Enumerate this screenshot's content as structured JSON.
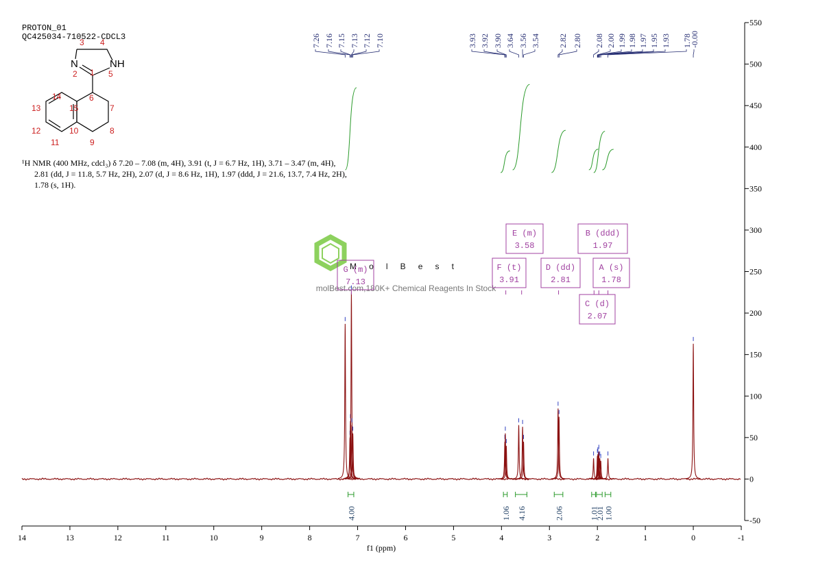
{
  "header": {
    "title": "PROTON_01",
    "sample": "QC425034-710522-CDCL3"
  },
  "structure": {
    "labels": [
      "3",
      "4",
      "N",
      "2",
      "1",
      "NH",
      "5",
      "6",
      "14",
      "15",
      "7",
      "13",
      "12",
      "10",
      "8",
      "11",
      "9"
    ]
  },
  "description": [
    "¹H NMR (400 MHz, cdcl₃) δ 7.20 – 7.08 (m, 4H), 3.91 (t, J = 6.7 Hz, 1H), 3.71 – 3.47 (m, 4H),",
    "2.81 (dd, J = 11.8, 5.7 Hz, 2H), 2.07 (d, J = 8.6 Hz, 1H), 1.97 (ddd, J = 21.6, 13.7, 7.4 Hz, 2H),",
    "1.78 (s, 1H)."
  ],
  "watermark": {
    "brand": "MolBest",
    "tagline": "molBest.com,180K+ Chemical Reagents In Stock"
  },
  "chart_data": {
    "type": "nmr",
    "x_label": "f1 (ppm)",
    "xlim": [
      14,
      -1
    ],
    "xticks": [
      14,
      13,
      12,
      11,
      10,
      9,
      8,
      7,
      6,
      5,
      4,
      3,
      2,
      1,
      0,
      -1
    ],
    "ylim": [
      -50,
      550
    ],
    "yticks": [
      -50,
      0,
      50,
      100,
      150,
      200,
      250,
      300,
      350,
      400,
      450,
      500,
      550
    ],
    "color": "#8b1010",
    "peaks": [
      {
        "ppm": 7.26,
        "label": "7.26",
        "height": 187
      },
      {
        "ppm": 7.16,
        "label": "7.16",
        "height": 50
      },
      {
        "ppm": 7.15,
        "label": "7.15",
        "height": 70
      },
      {
        "ppm": 7.13,
        "label": "7.13",
        "height": 225
      },
      {
        "ppm": 7.12,
        "label": "7.12",
        "height": 65
      },
      {
        "ppm": 7.1,
        "label": "7.10",
        "height": 55
      },
      {
        "ppm": 3.93,
        "label": "3.93",
        "height": 45
      },
      {
        "ppm": 3.92,
        "label": "3.92",
        "height": 55
      },
      {
        "ppm": 3.9,
        "label": "3.90",
        "height": 40
      },
      {
        "ppm": 3.64,
        "label": "3.64",
        "height": 65
      },
      {
        "ppm": 3.56,
        "label": "3.56",
        "height": 63
      },
      {
        "ppm": 3.54,
        "label": "3.54",
        "height": 45
      },
      {
        "ppm": 2.82,
        "label": "2.82",
        "height": 85
      },
      {
        "ppm": 2.8,
        "label": "2.80",
        "height": 75
      },
      {
        "ppm": 2.08,
        "label": "2.08",
        "height": 25
      },
      {
        "ppm": 2.0,
        "label": "2.00",
        "height": 28
      },
      {
        "ppm": 1.99,
        "label": "1.99",
        "height": 30
      },
      {
        "ppm": 1.98,
        "label": "1.98",
        "height": 25
      },
      {
        "ppm": 1.97,
        "label": "1.97",
        "height": 33
      },
      {
        "ppm": 1.95,
        "label": "1.95",
        "height": 25
      },
      {
        "ppm": 1.93,
        "label": "1.93",
        "height": 22
      },
      {
        "ppm": 1.78,
        "label": "1.78",
        "height": 25
      },
      {
        "ppm": 0,
        "label": "-0.00",
        "height": 163
      }
    ],
    "integrals": [
      {
        "range": [
          7.2,
          7.08
        ],
        "value": 4,
        "label": "4.00"
      },
      {
        "range": [
          3.96,
          3.88
        ],
        "value": 1.06,
        "label": "1.06"
      },
      {
        "range": [
          3.71,
          3.47
        ],
        "value": 4.16,
        "label": "4.16"
      },
      {
        "range": [
          2.9,
          2.72
        ],
        "value": 2.06,
        "label": "2.06"
      },
      {
        "range": [
          2.12,
          2.04
        ],
        "value": 1.01,
        "label": "1.01"
      },
      {
        "range": [
          2.02,
          1.9
        ],
        "value": 2.01,
        "label": "2.01"
      },
      {
        "range": [
          1.84,
          1.72
        ],
        "value": 1,
        "label": "1.00"
      }
    ],
    "multiplets": [
      {
        "name": "G (m)",
        "shift": 7.13
      },
      {
        "name": "E (m)",
        "shift": 3.58
      },
      {
        "name": "F (t)",
        "shift": 3.91
      },
      {
        "name": "D (dd)",
        "shift": 2.81
      },
      {
        "name": "B (ddd)",
        "shift": 1.97
      },
      {
        "name": "A (s)",
        "shift": 1.78
      },
      {
        "name": "C (d)",
        "shift": 2.07
      }
    ]
  }
}
